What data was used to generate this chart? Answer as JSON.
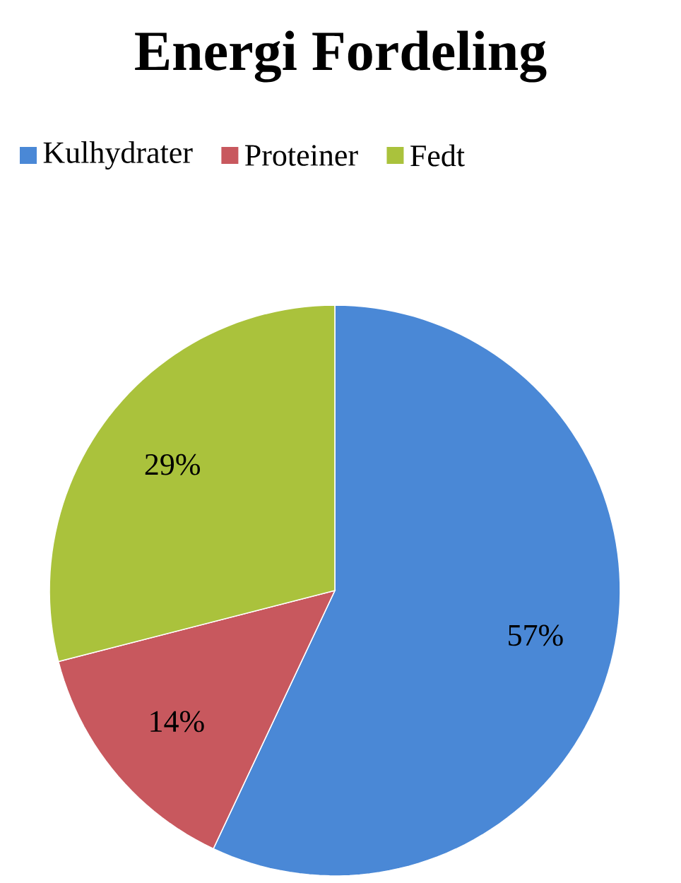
{
  "chart_data": {
    "type": "pie",
    "title": "Energi Fordeling",
    "categories": [
      "Kulhydrater",
      "Proteiner",
      "Fedt"
    ],
    "values": [
      57,
      14,
      29
    ],
    "colors": [
      "#4a88d6",
      "#c8585e",
      "#aac23c"
    ],
    "value_labels": [
      "57%",
      "14%",
      "29%"
    ],
    "legend": "top"
  }
}
